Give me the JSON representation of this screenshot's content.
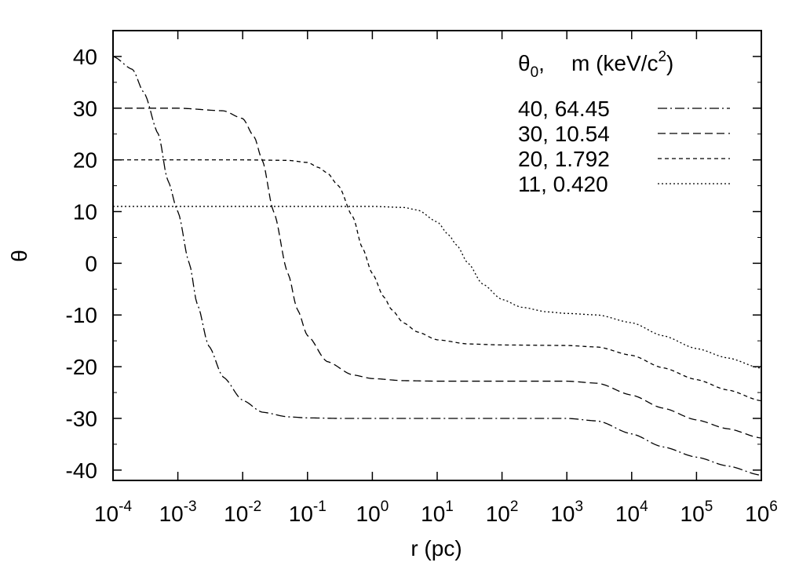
{
  "chart_data": {
    "type": "line",
    "xlabel": "r (pc)",
    "ylabel": "θ",
    "x_scale": "log",
    "xlim": [
      0.0001,
      1000000
    ],
    "ylim": [
      -42,
      45
    ],
    "x_tick_bases": [
      "10",
      "10",
      "10",
      "10",
      "10",
      "10",
      "10",
      "10",
      "10",
      "10",
      "10"
    ],
    "x_tick_exponents": [
      "-4",
      "-3",
      "-2",
      "-1",
      "0",
      "1",
      "2",
      "3",
      "4",
      "5",
      "6"
    ],
    "y_ticks": [
      "40",
      "30",
      "20",
      "10",
      "0",
      "-10",
      "-20",
      "-30",
      "-40"
    ],
    "grid": false,
    "legend_position": "top-right",
    "legend_header": {
      "theta": "θ",
      "sub": "0",
      "sep": ",",
      "m": "m (keV/c",
      "sup": "2",
      "close": ")"
    },
    "series": [
      {
        "name": "40,   64.45",
        "dash": "dashdot",
        "x": [
          0.0001,
          0.0002,
          0.0003,
          0.0005,
          0.0007,
          0.001,
          0.0015,
          0.002,
          0.003,
          0.005,
          0.01,
          0.02,
          0.05,
          0.1,
          0.3,
          1,
          10,
          100,
          1000,
          3000,
          10000,
          30000,
          100000,
          300000,
          1000000
        ],
        "y": [
          40,
          37.5,
          33,
          25,
          16,
          10,
          0,
          -8,
          -16,
          -22,
          -26.5,
          -28.8,
          -29.7,
          -29.9,
          -30,
          -30,
          -30,
          -30,
          -30,
          -30.5,
          -33,
          -35.5,
          -37.5,
          -39.2,
          -41
        ]
      },
      {
        "name": "30,   10.54",
        "dash": "dashed",
        "x": [
          0.0001,
          0.001,
          0.005,
          0.01,
          0.015,
          0.02,
          0.03,
          0.05,
          0.07,
          0.1,
          0.2,
          0.5,
          1,
          3,
          10,
          100,
          1000,
          3000,
          10000,
          30000,
          100000,
          300000,
          1000000
        ],
        "y": [
          30,
          30,
          29.5,
          28,
          24.5,
          20,
          10,
          -2,
          -9,
          -14,
          -19,
          -21.6,
          -22.3,
          -22.7,
          -22.8,
          -22.8,
          -22.8,
          -23.2,
          -25.5,
          -28,
          -30.3,
          -32,
          -33.8
        ]
      },
      {
        "name": "20,   1.792",
        "dash": "short-dashed",
        "x": [
          0.0001,
          0.01,
          0.05,
          0.1,
          0.15,
          0.2,
          0.3,
          0.5,
          0.7,
          1,
          1.5,
          2,
          3,
          5,
          10,
          30,
          100,
          1000,
          3000,
          10000,
          30000,
          100000,
          300000,
          1000000
        ],
        "y": [
          20,
          20,
          19.9,
          19.5,
          18.5,
          17.5,
          15,
          9,
          3,
          -2,
          -6.5,
          -9,
          -11.5,
          -13.3,
          -14.8,
          -15.6,
          -15.8,
          -15.9,
          -16.2,
          -17.8,
          -20.2,
          -22.5,
          -24.5,
          -26.6
        ]
      },
      {
        "name": "11,   0.420",
        "dash": "dotted",
        "x": [
          0.0001,
          0.1,
          1,
          3,
          5,
          10,
          15,
          20,
          30,
          50,
          100,
          200,
          500,
          1000,
          3000,
          10000,
          30000,
          100000,
          300000,
          1000000
        ],
        "y": [
          11,
          11,
          11,
          10.8,
          10.3,
          8,
          5.5,
          3.5,
          0,
          -4,
          -7,
          -8.5,
          -9.4,
          -9.7,
          -10,
          -11.5,
          -14,
          -16.5,
          -18.3,
          -20.3
        ]
      }
    ]
  }
}
